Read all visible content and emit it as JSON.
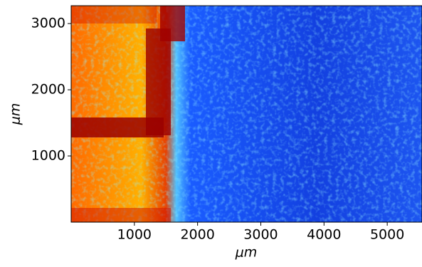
{
  "chart_data": {
    "type": "image",
    "x_label": "μm",
    "y_label": "μm",
    "xlim": [
      0,
      5550
    ],
    "ylim": [
      0,
      3270
    ],
    "xticks": [
      1000,
      2000,
      3000,
      4000,
      5000
    ],
    "yticks": [
      1000,
      2000,
      3000
    ]
  }
}
